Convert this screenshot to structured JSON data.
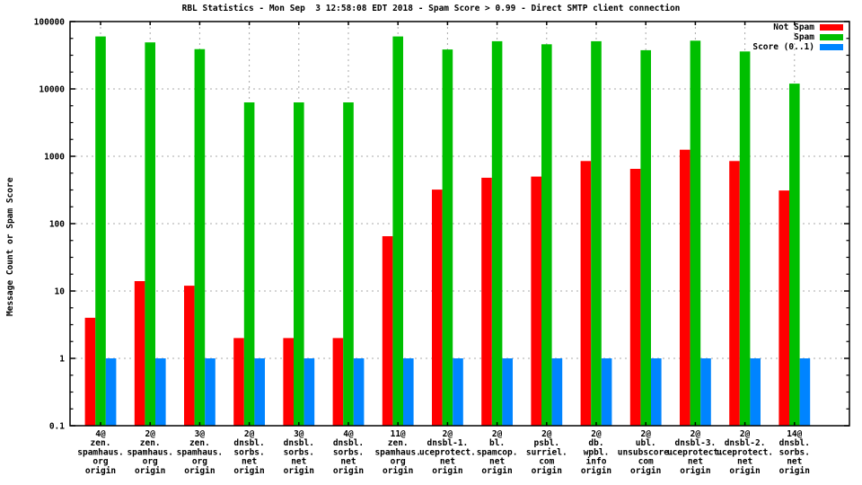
{
  "chart_data": {
    "type": "bar",
    "title": "RBL Statistics - Mon Sep  3 12:58:08 EDT 2018 - Spam Score > 0.99 - Direct SMTP client connection",
    "ylabel": "Message Count or Spam Score",
    "xlabel": "",
    "y_scale": "log",
    "ylim": [
      0.1,
      100000
    ],
    "yticks": [
      "100000",
      "10000",
      "1000",
      "100",
      "10",
      "1",
      "0.1"
    ],
    "grid": true,
    "legend_position": "top-right",
    "grid_color": "#a8a8a8",
    "axis_color": "#000000",
    "categories": [
      [
        "4@",
        "zen.",
        "spamhaus.",
        "org",
        "origin"
      ],
      [
        "2@",
        "zen.",
        "spamhaus.",
        "org",
        "origin"
      ],
      [
        "3@",
        "zen.",
        "spamhaus.",
        "org",
        "origin"
      ],
      [
        "2@",
        "dnsbl.",
        "sorbs.",
        "net",
        "origin"
      ],
      [
        "3@",
        "dnsbl.",
        "sorbs.",
        "net",
        "origin"
      ],
      [
        "4@",
        "dnsbl.",
        "sorbs.",
        "net",
        "origin"
      ],
      [
        "11@",
        "zen.",
        "spamhaus.",
        "org",
        "origin"
      ],
      [
        "2@",
        "dnsbl-1.",
        "uceprotect.",
        "net",
        "origin"
      ],
      [
        "2@",
        "bl.",
        "spamcop.",
        "net",
        "origin"
      ],
      [
        "2@",
        "psbl.",
        "surriel.",
        "com",
        "origin"
      ],
      [
        "2@",
        "db.",
        "wpbl.",
        "info",
        "origin"
      ],
      [
        "2@",
        "ubl.",
        "unsubscore.",
        "com",
        "origin"
      ],
      [
        "2@",
        "dnsbl-3.",
        "uceprotect.",
        "net",
        "origin"
      ],
      [
        "2@",
        "dnsbl-2.",
        "uceprotect.",
        "net",
        "origin"
      ],
      [
        "14@",
        "dnsbl.",
        "sorbs.",
        "net",
        "origin"
      ]
    ],
    "series": [
      {
        "name": "Not Spam",
        "color": "#ff0000",
        "values": [
          4,
          14,
          12,
          2,
          2,
          2,
          65,
          320,
          480,
          500,
          850,
          650,
          1250,
          850,
          310
        ]
      },
      {
        "name": "Spam",
        "color": "#00bf00",
        "values": [
          60000,
          49000,
          39000,
          6300,
          6300,
          6300,
          60000,
          38500,
          51000,
          46000,
          51000,
          37500,
          52000,
          36000,
          12000
        ]
      },
      {
        "name": "Score (0..1)",
        "color": "#0084ff",
        "values": [
          1,
          1,
          1,
          1,
          1,
          1,
          1,
          1,
          1,
          1,
          1,
          1,
          1,
          1,
          1
        ]
      }
    ]
  }
}
